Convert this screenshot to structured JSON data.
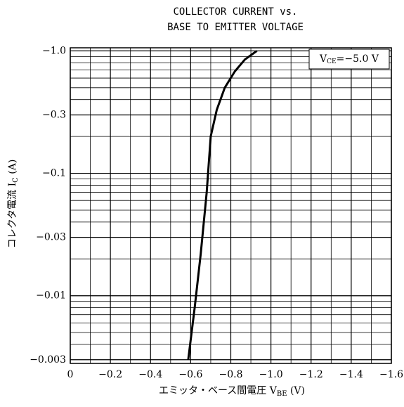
{
  "chart_data": {
    "type": "line",
    "title": [
      "COLLECTOR CURRENT vs.",
      "BASE TO EMITTER VOLTAGE"
    ],
    "xlabel": {
      "text": "エミッタ・ベース間電圧  V",
      "sub": "BE",
      "unit": " (V)"
    },
    "ylabel": {
      "text": "コレクタ電流  I",
      "sub": "C",
      "unit": " (A)"
    },
    "annotation": {
      "text": "V",
      "sub": "CE",
      "suffix": "=−5.0 V"
    },
    "xlim": [
      0,
      -1.6
    ],
    "xticks": [
      0,
      {
        "value": -0.2,
        "label": "−0.2"
      },
      {
        "value": -0.4,
        "label": "−0.4"
      },
      {
        "value": -0.6,
        "label": "−0.6"
      },
      {
        "value": -0.8,
        "label": "−0.8"
      },
      {
        "value": -1.0,
        "label": "−1.0"
      },
      {
        "value": -1.2,
        "label": "−1.2"
      },
      {
        "value": -1.4,
        "label": "−1.4"
      },
      {
        "value": -1.6,
        "label": "−1.6"
      }
    ],
    "ylim": [
      -0.0028,
      -1.06
    ],
    "yticks": [
      {
        "value": -0.003,
        "label": "−0.003"
      },
      {
        "value": -0.01,
        "label": "−0.01"
      },
      {
        "value": -0.03,
        "label": "−0.03"
      },
      {
        "value": -0.1,
        "label": "−0.1"
      },
      {
        "value": -0.3,
        "label": "−0.3"
      },
      {
        "value": -1.0,
        "label": "−1.0"
      }
    ],
    "log_y": true,
    "grid": true,
    "series": [
      {
        "color": "#000000",
        "x": [
          -0.588,
          -0.62,
          -0.65,
          -0.68,
          -0.7,
          -0.73,
          -0.77,
          -0.82,
          -0.87,
          -0.93
        ],
        "values": [
          -0.003,
          -0.008,
          -0.022,
          -0.07,
          -0.2,
          -0.33,
          -0.5,
          -0.68,
          -0.85,
          -1.0
        ]
      }
    ]
  }
}
